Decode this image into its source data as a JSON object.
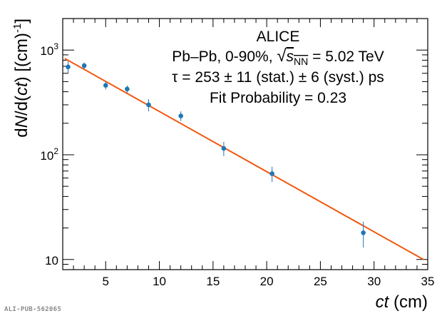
{
  "chart_data": {
    "type": "scatter",
    "title": "",
    "xlabel": "ct (cm)",
    "xlabel_italic": "ct",
    "xlabel_unit": " (cm)",
    "ylabel": "dN/d(ct) [(cm)⁻¹]",
    "xlim": [
      1,
      35
    ],
    "ylim": [
      8,
      2000
    ],
    "yscale": "log",
    "x_ticks": [
      5,
      10,
      15,
      20,
      25,
      30,
      35
    ],
    "x_tick_labels": [
      "5",
      "10",
      "15",
      "20",
      "25",
      "30",
      "35"
    ],
    "y_major_ticks": [
      10,
      100,
      1000
    ],
    "series": [
      {
        "name": "data",
        "color": "#1f77b4",
        "points": [
          {
            "x": 1.5,
            "y": 690,
            "err_low": 90,
            "err_high": 90
          },
          {
            "x": 3.0,
            "y": 710,
            "err_low": 50,
            "err_high": 50
          },
          {
            "x": 5.0,
            "y": 460,
            "err_low": 40,
            "err_high": 40
          },
          {
            "x": 7.0,
            "y": 425,
            "err_low": 35,
            "err_high": 35
          },
          {
            "x": 9.0,
            "y": 300,
            "err_low": 40,
            "err_high": 40
          },
          {
            "x": 12.0,
            "y": 235,
            "err_low": 25,
            "err_high": 25
          },
          {
            "x": 16.0,
            "y": 115,
            "err_low": 18,
            "err_high": 18
          },
          {
            "x": 20.5,
            "y": 66,
            "err_low": 11,
            "err_high": 11
          },
          {
            "x": 29.0,
            "y": 18,
            "err_low": 5,
            "err_high": 5
          }
        ]
      },
      {
        "name": "fit",
        "type": "line",
        "color": "#f2580f",
        "x": [
          1.2,
          34.6
        ],
        "y": [
          830,
          10
        ]
      }
    ],
    "annotations": {
      "experiment": "ALICE",
      "system_prefix": "Pb–Pb, 0-90%, ",
      "energy_suffix": " = 5.02 TeV",
      "sqrt_s_symbol": "s",
      "sqrt_s_subscript": "NN",
      "lifetime": "τ = 253 ± 11 (stat.) ± 6 (syst.) ps",
      "fit_probability": "Fit Probability = 0.23"
    },
    "publication_id": "ALI-PUB-562065"
  }
}
